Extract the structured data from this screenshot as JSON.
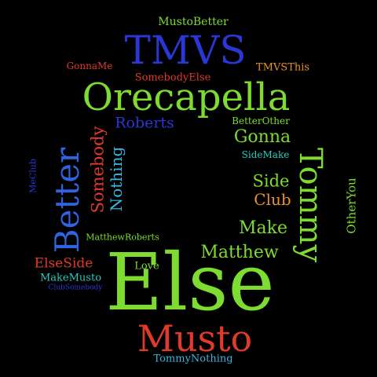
{
  "words": [
    {
      "id": "musto-better",
      "text": "MustoBetter",
      "color": "#7ddc2f"
    },
    {
      "id": "tmvs",
      "text": "TMVS",
      "color": "#2a36d6"
    },
    {
      "id": "gonna-me",
      "text": "GonnaMe",
      "color": "#e03a2a"
    },
    {
      "id": "tmvs-this",
      "text": "TMVSThis",
      "color": "#e8922a"
    },
    {
      "id": "somebody-else",
      "text": "SomebodyElse",
      "color": "#e03a2a"
    },
    {
      "id": "orecapella",
      "text": "Orecapella",
      "color": "#7ddc2f"
    },
    {
      "id": "better-other",
      "text": "BetterOther",
      "color": "#7ddc2f"
    },
    {
      "id": "roberts",
      "text": "Roberts",
      "color": "#2a36d6"
    },
    {
      "id": "gonna",
      "text": "Gonna",
      "color": "#7ddc2f"
    },
    {
      "id": "side-make",
      "text": "SideMake",
      "color": "#2ec9c0"
    },
    {
      "id": "better",
      "text": "Better",
      "color": "#2f63e0"
    },
    {
      "id": "somebody",
      "text": "Somebody",
      "color": "#e03a2a"
    },
    {
      "id": "nothing",
      "text": "Nothing",
      "color": "#3ab6e0"
    },
    {
      "id": "me-club",
      "text": "MeClub",
      "color": "#2a36d6"
    },
    {
      "id": "tommy",
      "text": "Tommy",
      "color": "#7ddc2f"
    },
    {
      "id": "side",
      "text": "Side",
      "color": "#7ddc2f"
    },
    {
      "id": "club",
      "text": "Club",
      "color": "#e8922a"
    },
    {
      "id": "other-you",
      "text": "OtherYou",
      "color": "#7ddc2f"
    },
    {
      "id": "make",
      "text": "Make",
      "color": "#7ddc2f"
    },
    {
      "id": "matthew-roberts",
      "text": "MatthewRoberts",
      "color": "#7ddc2f"
    },
    {
      "id": "matthew",
      "text": "Matthew",
      "color": "#7ddc2f"
    },
    {
      "id": "else-side",
      "text": "ElseSide",
      "color": "#e03a2a"
    },
    {
      "id": "love",
      "text": "Love",
      "color": "#7ddc2f"
    },
    {
      "id": "make-musto",
      "text": "MakeMusto",
      "color": "#2ec9c0"
    },
    {
      "id": "club-somebody",
      "text": "ClubSomebody",
      "color": "#2a36d6"
    },
    {
      "id": "else",
      "text": "Else",
      "color": "#7ddc2f"
    },
    {
      "id": "musto",
      "text": "Musto",
      "color": "#e03a2a"
    },
    {
      "id": "tommy-nothing",
      "text": "TommyNothing",
      "color": "#3ab6e0"
    }
  ]
}
